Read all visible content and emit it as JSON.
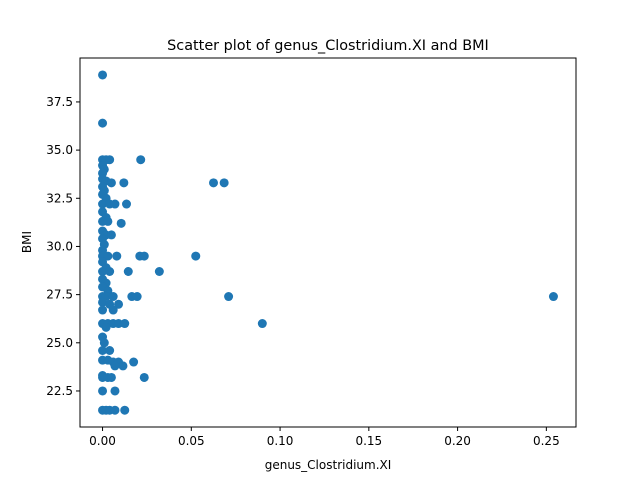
{
  "chart_data": {
    "type": "scatter",
    "title": "Scatter plot of genus_Clostridium.XI and BMI",
    "xlabel": "genus_Clostridium.XI",
    "ylabel": "BMI",
    "xlim": [
      -0.0127,
      0.2667
    ],
    "ylim": [
      20.63,
      39.78
    ],
    "xticks": [
      0.0,
      0.05,
      0.1,
      0.15,
      0.2,
      0.25
    ],
    "xtick_labels": [
      "0.00",
      "0.05",
      "0.10",
      "0.15",
      "0.20",
      "0.25"
    ],
    "yticks": [
      22.5,
      25.0,
      27.5,
      30.0,
      32.5,
      35.0,
      37.5
    ],
    "ytick_labels": [
      "22.5",
      "25.0",
      "27.5",
      "30.0",
      "32.5",
      "35.0",
      "37.5"
    ],
    "grid": false,
    "marker_color": "#1f77b4",
    "points": [
      [
        0.0,
        38.9
      ],
      [
        0.0,
        36.4
      ],
      [
        0.0,
        34.5
      ],
      [
        0.002,
        34.5
      ],
      [
        0.004,
        34.5
      ],
      [
        0.0215,
        34.5
      ],
      [
        0.0,
        34.2
      ],
      [
        0.001,
        34.0
      ],
      [
        0.0,
        33.8
      ],
      [
        0.0,
        33.5
      ],
      [
        0.002,
        33.4
      ],
      [
        0.005,
        33.3
      ],
      [
        0.012,
        33.3
      ],
      [
        0.0625,
        33.3
      ],
      [
        0.0685,
        33.3
      ],
      [
        0.0,
        33.1
      ],
      [
        0.001,
        32.9
      ],
      [
        0.0,
        32.7
      ],
      [
        0.002,
        32.5
      ],
      [
        0.0,
        32.2
      ],
      [
        0.004,
        32.2
      ],
      [
        0.007,
        32.2
      ],
      [
        0.0135,
        32.2
      ],
      [
        0.0,
        31.8
      ],
      [
        0.002,
        31.5
      ],
      [
        0.0,
        31.3
      ],
      [
        0.003,
        31.3
      ],
      [
        0.0105,
        31.2
      ],
      [
        0.0,
        30.8
      ],
      [
        0.002,
        30.6
      ],
      [
        0.005,
        30.6
      ],
      [
        0.0,
        30.4
      ],
      [
        0.001,
        30.1
      ],
      [
        0.0,
        29.8
      ],
      [
        0.0,
        29.5
      ],
      [
        0.003,
        29.5
      ],
      [
        0.008,
        29.5
      ],
      [
        0.021,
        29.5
      ],
      [
        0.0235,
        29.5
      ],
      [
        0.0525,
        29.5
      ],
      [
        0.0,
        29.2
      ],
      [
        0.002,
        28.9
      ],
      [
        0.0,
        28.7
      ],
      [
        0.004,
        28.7
      ],
      [
        0.0145,
        28.7
      ],
      [
        0.032,
        28.7
      ],
      [
        0.0,
        28.3
      ],
      [
        0.002,
        28.1
      ],
      [
        0.0,
        27.9
      ],
      [
        0.003,
        27.7
      ],
      [
        0.0,
        27.4
      ],
      [
        0.002,
        27.4
      ],
      [
        0.006,
        27.4
      ],
      [
        0.0165,
        27.4
      ],
      [
        0.0195,
        27.4
      ],
      [
        0.071,
        27.4
      ],
      [
        0.254,
        27.4
      ],
      [
        0.0,
        27.1
      ],
      [
        0.004,
        27.0
      ],
      [
        0.009,
        27.0
      ],
      [
        0.0,
        26.7
      ],
      [
        0.006,
        26.7
      ],
      [
        0.0,
        26.0
      ],
      [
        0.003,
        26.0
      ],
      [
        0.006,
        26.0
      ],
      [
        0.009,
        26.0
      ],
      [
        0.0125,
        26.0
      ],
      [
        0.09,
        26.0
      ],
      [
        0.002,
        25.8
      ],
      [
        0.0,
        25.3
      ],
      [
        0.001,
        25.0
      ],
      [
        0.0,
        24.6
      ],
      [
        0.004,
        24.6
      ],
      [
        0.0,
        24.1
      ],
      [
        0.003,
        24.1
      ],
      [
        0.006,
        24.0
      ],
      [
        0.009,
        24.0
      ],
      [
        0.0175,
        24.0
      ],
      [
        0.0115,
        23.8
      ],
      [
        0.007,
        23.8
      ],
      [
        0.0,
        23.3
      ],
      [
        0.0,
        23.2
      ],
      [
        0.003,
        23.2
      ],
      [
        0.005,
        23.2
      ],
      [
        0.0235,
        23.2
      ],
      [
        0.0,
        22.5
      ],
      [
        0.007,
        22.5
      ],
      [
        0.0,
        21.5
      ],
      [
        0.002,
        21.5
      ],
      [
        0.004,
        21.5
      ],
      [
        0.007,
        21.5
      ],
      [
        0.0125,
        21.5
      ]
    ]
  }
}
